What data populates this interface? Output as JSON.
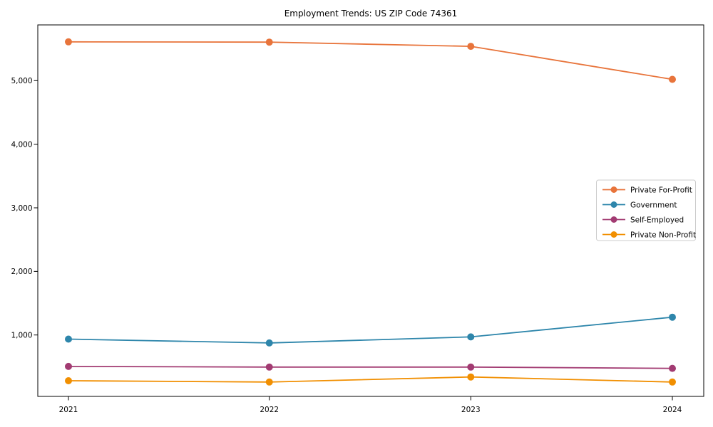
{
  "chart_data": {
    "type": "line",
    "title": "Employment Trends: US ZIP Code 74361",
    "xlabel": "",
    "ylabel": "",
    "x": [
      2021,
      2022,
      2023,
      2024
    ],
    "x_tick_labels": [
      "2021",
      "2022",
      "2023",
      "2024"
    ],
    "y_ticks": [
      1000,
      2000,
      3000,
      4000,
      5000
    ],
    "y_tick_labels": [
      "1,000",
      "2,000",
      "3,000",
      "4,000",
      "5,000"
    ],
    "ylim": [
      30,
      5880
    ],
    "grid": false,
    "marker": "o",
    "legend_position": "center right",
    "series": [
      {
        "name": "Private For-Profit",
        "color": "#E8743B",
        "values": [
          5610,
          5605,
          5540,
          5020
        ]
      },
      {
        "name": "Government",
        "color": "#2E86AB",
        "values": [
          935,
          875,
          970,
          1280
        ]
      },
      {
        "name": "Self-Employed",
        "color": "#A23B72",
        "values": [
          505,
          495,
          495,
          475
        ]
      },
      {
        "name": "Private Non-Profit",
        "color": "#F18F01",
        "values": [
          280,
          260,
          340,
          260
        ]
      }
    ],
    "style": {
      "background": "#FFFFFF",
      "spine_color": "#000000",
      "text_color": "#000000",
      "legend_border": "#CCCCCC",
      "legend_background": "#FFFFFF"
    }
  }
}
